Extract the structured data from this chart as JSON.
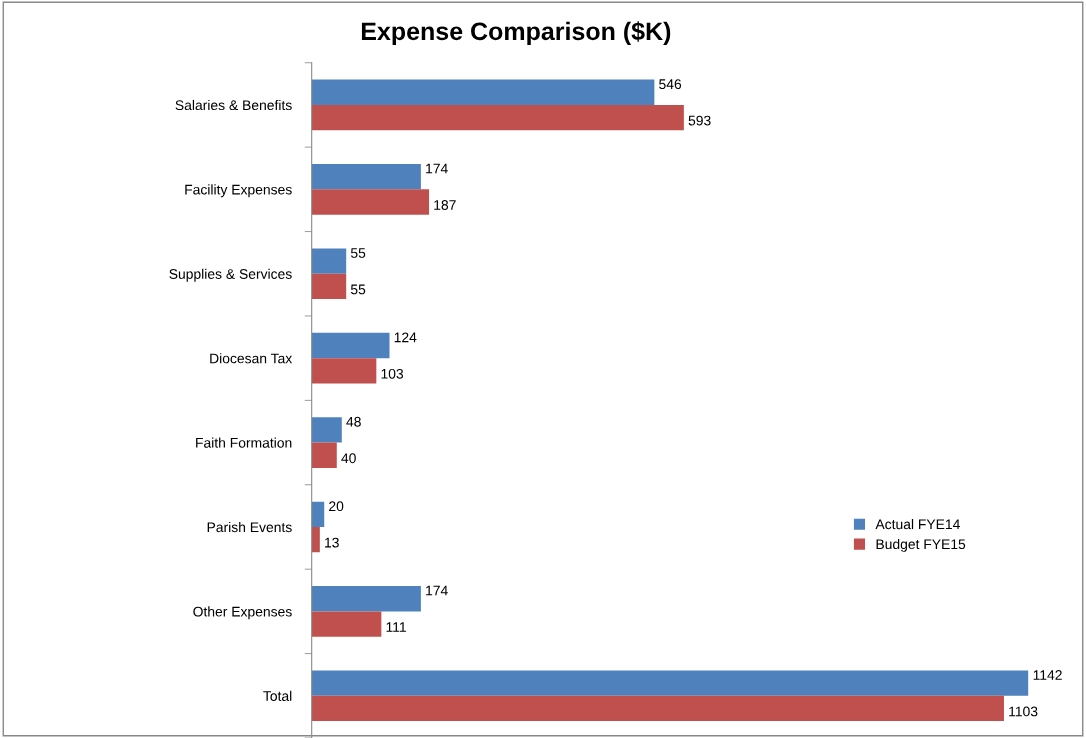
{
  "chart_data": {
    "type": "bar",
    "orientation": "horizontal",
    "title": "Expense Comparison ($K)",
    "categories": [
      "Salaries & Benefits",
      "Facility Expenses",
      "Supplies & Services",
      "Diocesan Tax",
      "Faith Formation",
      "Parish Events",
      "Other Expenses",
      "Total"
    ],
    "series": [
      {
        "name": "Actual FYE14",
        "color": "#4f81bd",
        "values": [
          546,
          174,
          55,
          124,
          48,
          20,
          174,
          1142
        ]
      },
      {
        "name": "Budget FYE15",
        "color": "#c0504d",
        "values": [
          593,
          187,
          55,
          103,
          40,
          13,
          111,
          1103
        ]
      }
    ],
    "data_labels": true,
    "legend": "right",
    "grid": false
  }
}
